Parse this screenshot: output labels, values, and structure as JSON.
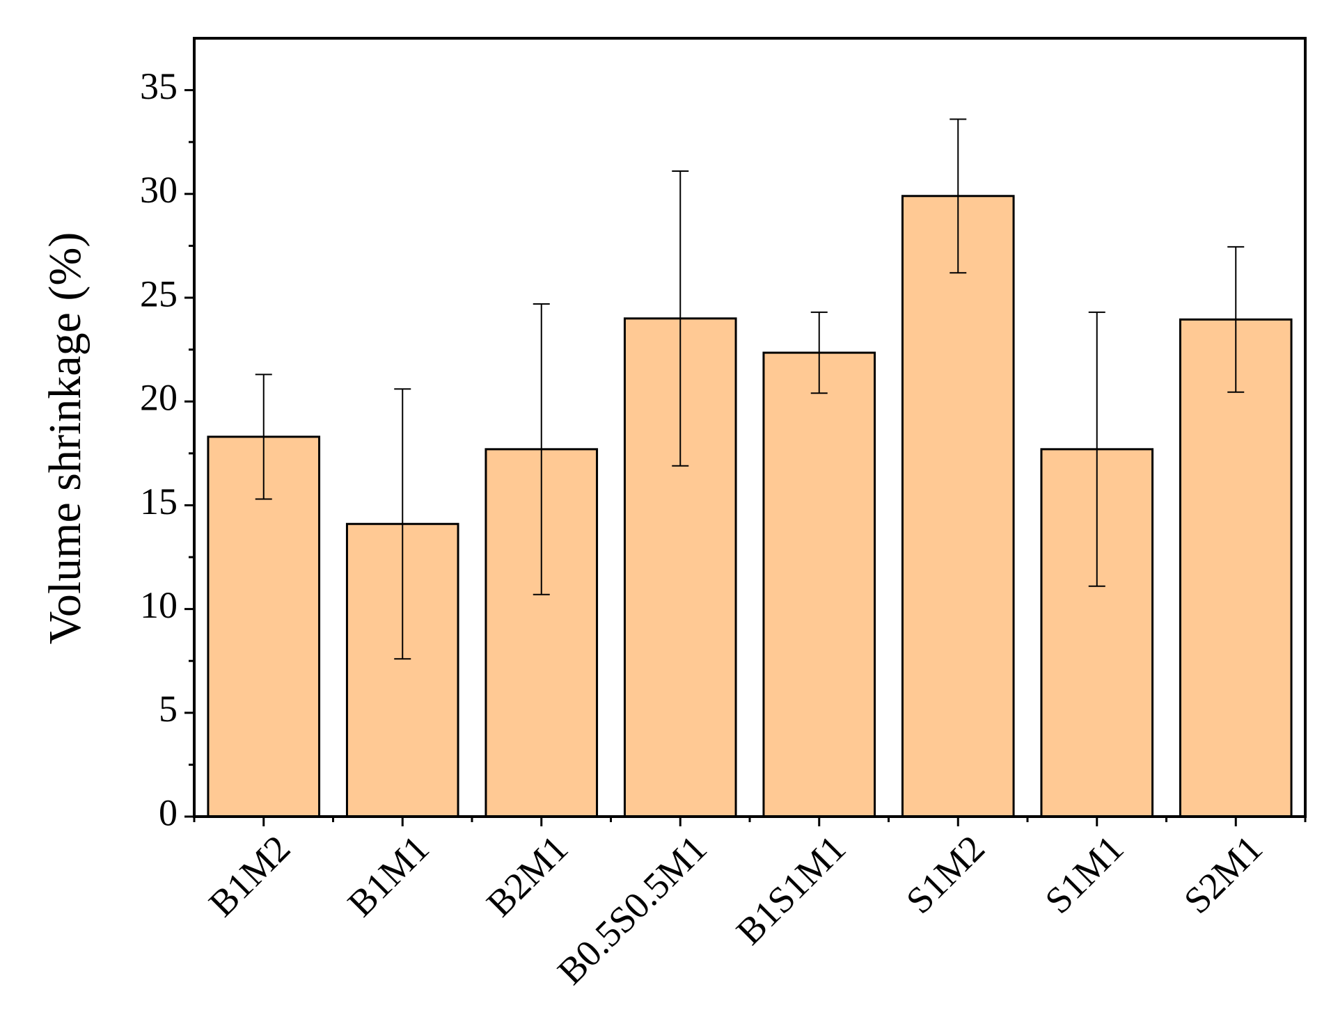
{
  "chart_data": {
    "type": "bar",
    "y_label": "Volume shrinkage (%)",
    "categories": [
      "B1M2",
      "B1M1",
      "B2M1",
      "B0.5S0.5M1",
      "B1S1M1",
      "S1M2",
      "S1M1",
      "S2M1"
    ],
    "values": [
      18.3,
      14.1,
      17.7,
      24.0,
      22.35,
      29.9,
      17.7,
      23.95
    ],
    "errors": [
      3.0,
      6.5,
      7.0,
      7.1,
      1.95,
      3.7,
      6.6,
      3.5
    ],
    "color": "#ffc994",
    "ylim": [
      0,
      37.5
    ],
    "yticks": [
      0,
      5,
      10,
      15,
      20,
      25,
      30,
      35
    ],
    "grid": false
  }
}
